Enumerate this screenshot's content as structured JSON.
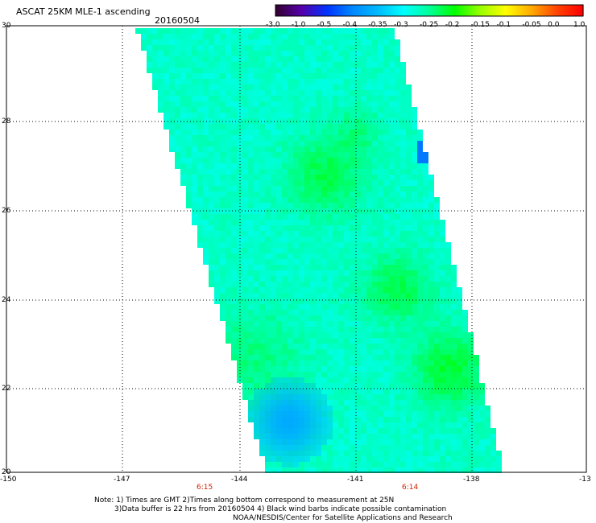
{
  "header": {
    "title": "ASCAT 25KM MLE-1 ascending",
    "date": "20160504"
  },
  "colorbar": {
    "labels": [
      "-3.0",
      "-1.0",
      "-0.5",
      "-0.4",
      "-0.35",
      "-0.3",
      "-0.25",
      "-0.2",
      "-0.15",
      "-0.1",
      "-0.05",
      "0.0",
      "1.0"
    ],
    "colors": [
      "#330033",
      "#5500aa",
      "#0033ff",
      "#0088ff",
      "#00bbff",
      "#00ffff",
      "#00ff99",
      "#00ff00",
      "#99ff00",
      "#ffff00",
      "#ffaa00",
      "#ff4400",
      "#ff0000"
    ]
  },
  "axes": {
    "y_ticks": [
      "30",
      "28",
      "26",
      "24",
      "22",
      "20"
    ],
    "x_ticks": [
      "-150",
      "-147",
      "-144",
      "-141",
      "-138",
      "-13"
    ]
  },
  "times": [
    "6:15",
    "6:14"
  ],
  "notes": {
    "line1": "Note: 1) Times are GMT 2)Times along bottom correspond to measurement at 25N",
    "line2": "3)Data buffer is 22 hrs from 20160504 4) Black wind barbs indicate possible contamination",
    "line3": "NOAA/NESDIS/Center for Satellite Applications and Research"
  }
}
